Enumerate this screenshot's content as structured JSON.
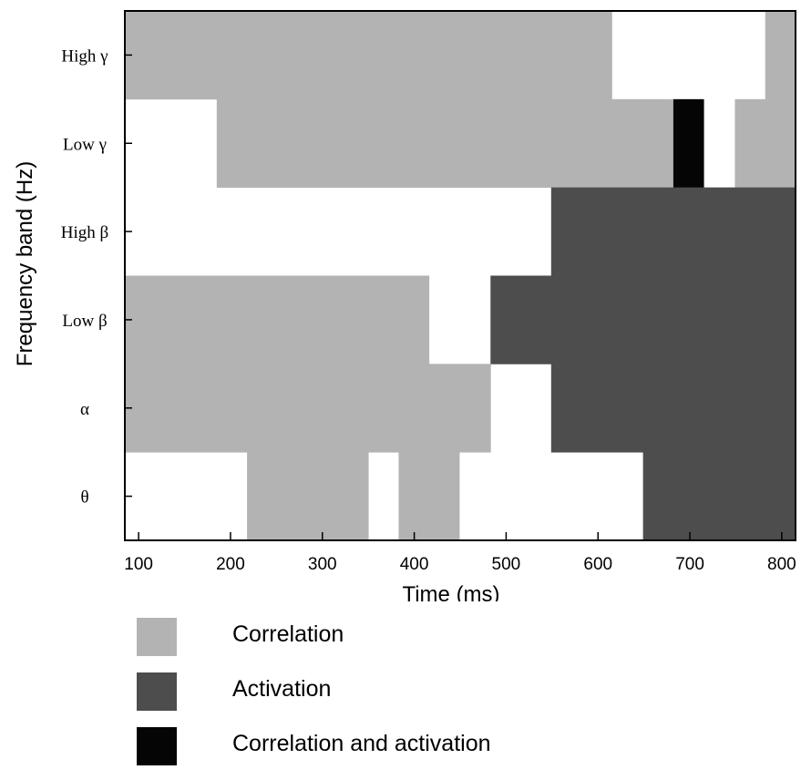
{
  "chart_data": {
    "type": "heatmap",
    "xlabel": "Time (ms)",
    "ylabel": "Frequency band (Hz)",
    "xlim": [
      85,
      815
    ],
    "xticks": [
      100,
      200,
      300,
      400,
      500,
      600,
      700,
      800
    ],
    "bands": [
      "High γ",
      "Low γ",
      "High β",
      "Low β",
      "α",
      "θ"
    ],
    "categories": {
      "correlation": {
        "label": "Correlation",
        "color": "#b3b3b3"
      },
      "activation": {
        "label": "Activation",
        "color": "#4d4d4d"
      },
      "both": {
        "label": "Correlation and activation",
        "color": "#050505"
      }
    },
    "segments": [
      {
        "band": "High γ",
        "start": 85,
        "end": 615,
        "category": "correlation"
      },
      {
        "band": "High γ",
        "start": 782,
        "end": 815,
        "category": "correlation"
      },
      {
        "band": "Low γ",
        "start": 185,
        "end": 682,
        "category": "correlation"
      },
      {
        "band": "Low γ",
        "start": 682,
        "end": 715,
        "category": "both"
      },
      {
        "band": "Low γ",
        "start": 749,
        "end": 815,
        "category": "correlation"
      },
      {
        "band": "High β",
        "start": 549,
        "end": 815,
        "category": "activation"
      },
      {
        "band": "Low β",
        "start": 85,
        "end": 416,
        "category": "correlation"
      },
      {
        "band": "Low β",
        "start": 483,
        "end": 815,
        "category": "activation"
      },
      {
        "band": "α",
        "start": 85,
        "end": 483,
        "category": "correlation"
      },
      {
        "band": "α",
        "start": 549,
        "end": 815,
        "category": "activation"
      },
      {
        "band": "θ",
        "start": 218,
        "end": 350,
        "category": "correlation"
      },
      {
        "band": "θ",
        "start": 383,
        "end": 449,
        "category": "correlation"
      },
      {
        "band": "θ",
        "start": 649,
        "end": 815,
        "category": "activation"
      }
    ]
  },
  "legend": {
    "items": [
      {
        "label": "Correlation",
        "color": "#b3b3b3"
      },
      {
        "label": "Activation",
        "color": "#4d4d4d"
      },
      {
        "label": "Correlation and activation",
        "color": "#050505"
      }
    ]
  }
}
